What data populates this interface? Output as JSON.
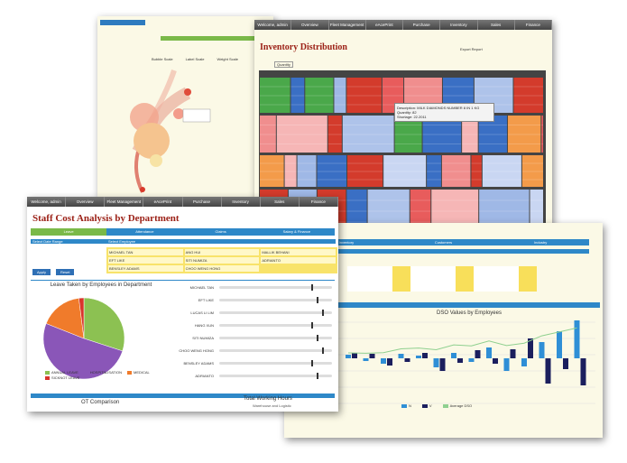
{
  "bubble_panel": {
    "labels": [
      "Bubble Scale",
      "Label Scale",
      "Weight Scale"
    ]
  },
  "inventory_panel": {
    "tabs": [
      "Welcome, admin",
      "Overview",
      "Fleet Management",
      "eAcePrint",
      "Purchase",
      "Inventory",
      "Sales",
      "Finance"
    ],
    "title": "Inventory Distribution",
    "quantity_label": "Quantity",
    "export_label": "Export Report",
    "tooltip": [
      "Description: MILK DIAMONDS NUMBER 8 IN 1 KG",
      "Quantity: 82",
      "Shortage: 22.2011"
    ]
  },
  "staff_panel": {
    "tabs": [
      "Welcome, admin",
      "Overview",
      "Fleet Management",
      "eAcePrint",
      "Purchase",
      "Inventory",
      "Sales",
      "Finance"
    ],
    "title": "Staff Cost Analysis by Department",
    "subtabs": [
      "Leave",
      "Attendance",
      "Claims",
      "Salary & Finance"
    ],
    "date_range_label": "Select Date Range",
    "employee_label": "Select Employee",
    "employees": [
      "MICHAEL TAN",
      "ANG HUI",
      "MALLIK BEHANI",
      "EFT LIKE",
      "SITI NUMIZA",
      "ADRIANTO",
      "BENSLEY ADAMS",
      "CHOO WENG HONG"
    ],
    "buttons": [
      "Apply",
      "Reset"
    ],
    "slider_names": [
      "MICHAEL TAN",
      "EFT LIKE",
      "LUCAS LI LIM",
      "HANG XUN",
      "SITI NUMIZA",
      "CHOO WENG HONG",
      "BENSLEY ADAMS",
      "ADRIANTO"
    ],
    "bottom_left": "OT Comparison",
    "bottom_right": "Total Working Hours",
    "bottom_right_sub": "Warehouse and Logistic"
  },
  "chart_data": {
    "type": "pie",
    "title": "Leave Taken by Employees in Department",
    "categories": [
      "ANNUAL LEAVE",
      "HOSPITALISATION",
      "MEDICAL",
      "SICKNOT LEAVE"
    ],
    "values": [
      30,
      51,
      17,
      2
    ],
    "colors": [
      "#8cc152",
      "#8a56b8",
      "#f07b2b",
      "#d9342b"
    ]
  },
  "dso_panel": {
    "tabs": [
      "Inventory",
      "Customers",
      "Industry"
    ],
    "employee_label": "Select Employee",
    "title": "DSO Values by Employees",
    "legend": [
      "N",
      "V",
      "Average DSO"
    ]
  }
}
